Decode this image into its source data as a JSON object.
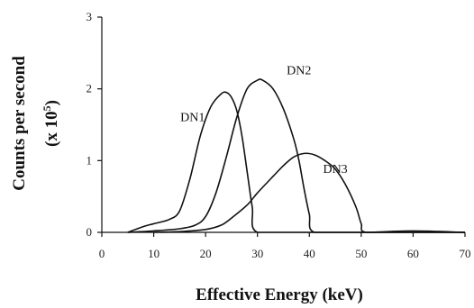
{
  "chart_data": {
    "type": "line",
    "title": "",
    "xlabel": "Effective Energy (keV)",
    "ylabel_main": "Counts per second",
    "ylabel_unit": "(x 10",
    "ylabel_unit_exp": "5",
    "ylabel_unit_end": ")",
    "xlim": [
      0,
      70
    ],
    "ylim": [
      0,
      3
    ],
    "x_ticks": [
      0,
      10,
      20,
      30,
      40,
      50,
      60,
      70
    ],
    "y_ticks": [
      0,
      1,
      2,
      3
    ],
    "grid": false,
    "legend": "none (direct labels)",
    "series": [
      {
        "name": "DN1",
        "x": [
          5,
          8,
          10,
          13,
          15,
          17,
          19,
          21,
          23,
          24,
          25,
          26,
          27,
          28,
          29,
          30,
          40,
          70
        ],
        "y": [
          0.0,
          0.08,
          0.12,
          0.18,
          0.3,
          0.75,
          1.35,
          1.75,
          1.93,
          1.95,
          1.88,
          1.7,
          1.35,
          0.85,
          0.35,
          0.0,
          0.0,
          0.0
        ]
      },
      {
        "name": "DN2",
        "x": [
          5,
          10,
          15,
          18,
          20,
          22,
          24,
          26,
          28,
          30,
          31,
          33,
          35,
          37,
          38,
          39,
          40,
          41,
          50,
          70
        ],
        "y": [
          0.0,
          0.02,
          0.05,
          0.1,
          0.22,
          0.55,
          1.05,
          1.6,
          2.0,
          2.12,
          2.12,
          2.0,
          1.72,
          1.3,
          1.0,
          0.6,
          0.25,
          0.0,
          0.0,
          0.0
        ]
      },
      {
        "name": "DN3",
        "x": [
          10,
          15,
          20,
          23,
          25,
          28,
          30,
          33,
          35,
          37,
          39,
          41,
          43,
          45,
          47,
          49,
          50,
          51,
          60,
          70
        ],
        "y": [
          0.0,
          0.01,
          0.04,
          0.1,
          0.2,
          0.38,
          0.55,
          0.78,
          0.93,
          1.05,
          1.1,
          1.08,
          1.0,
          0.88,
          0.66,
          0.35,
          0.12,
          0.0,
          0.02,
          0.0
        ]
      }
    ],
    "series_label_positions": {
      "DN1": {
        "x": 17.5,
        "y": 1.55
      },
      "DN2": {
        "x": 38,
        "y": 2.2
      },
      "DN3": {
        "x": 45,
        "y": 0.83
      }
    }
  }
}
